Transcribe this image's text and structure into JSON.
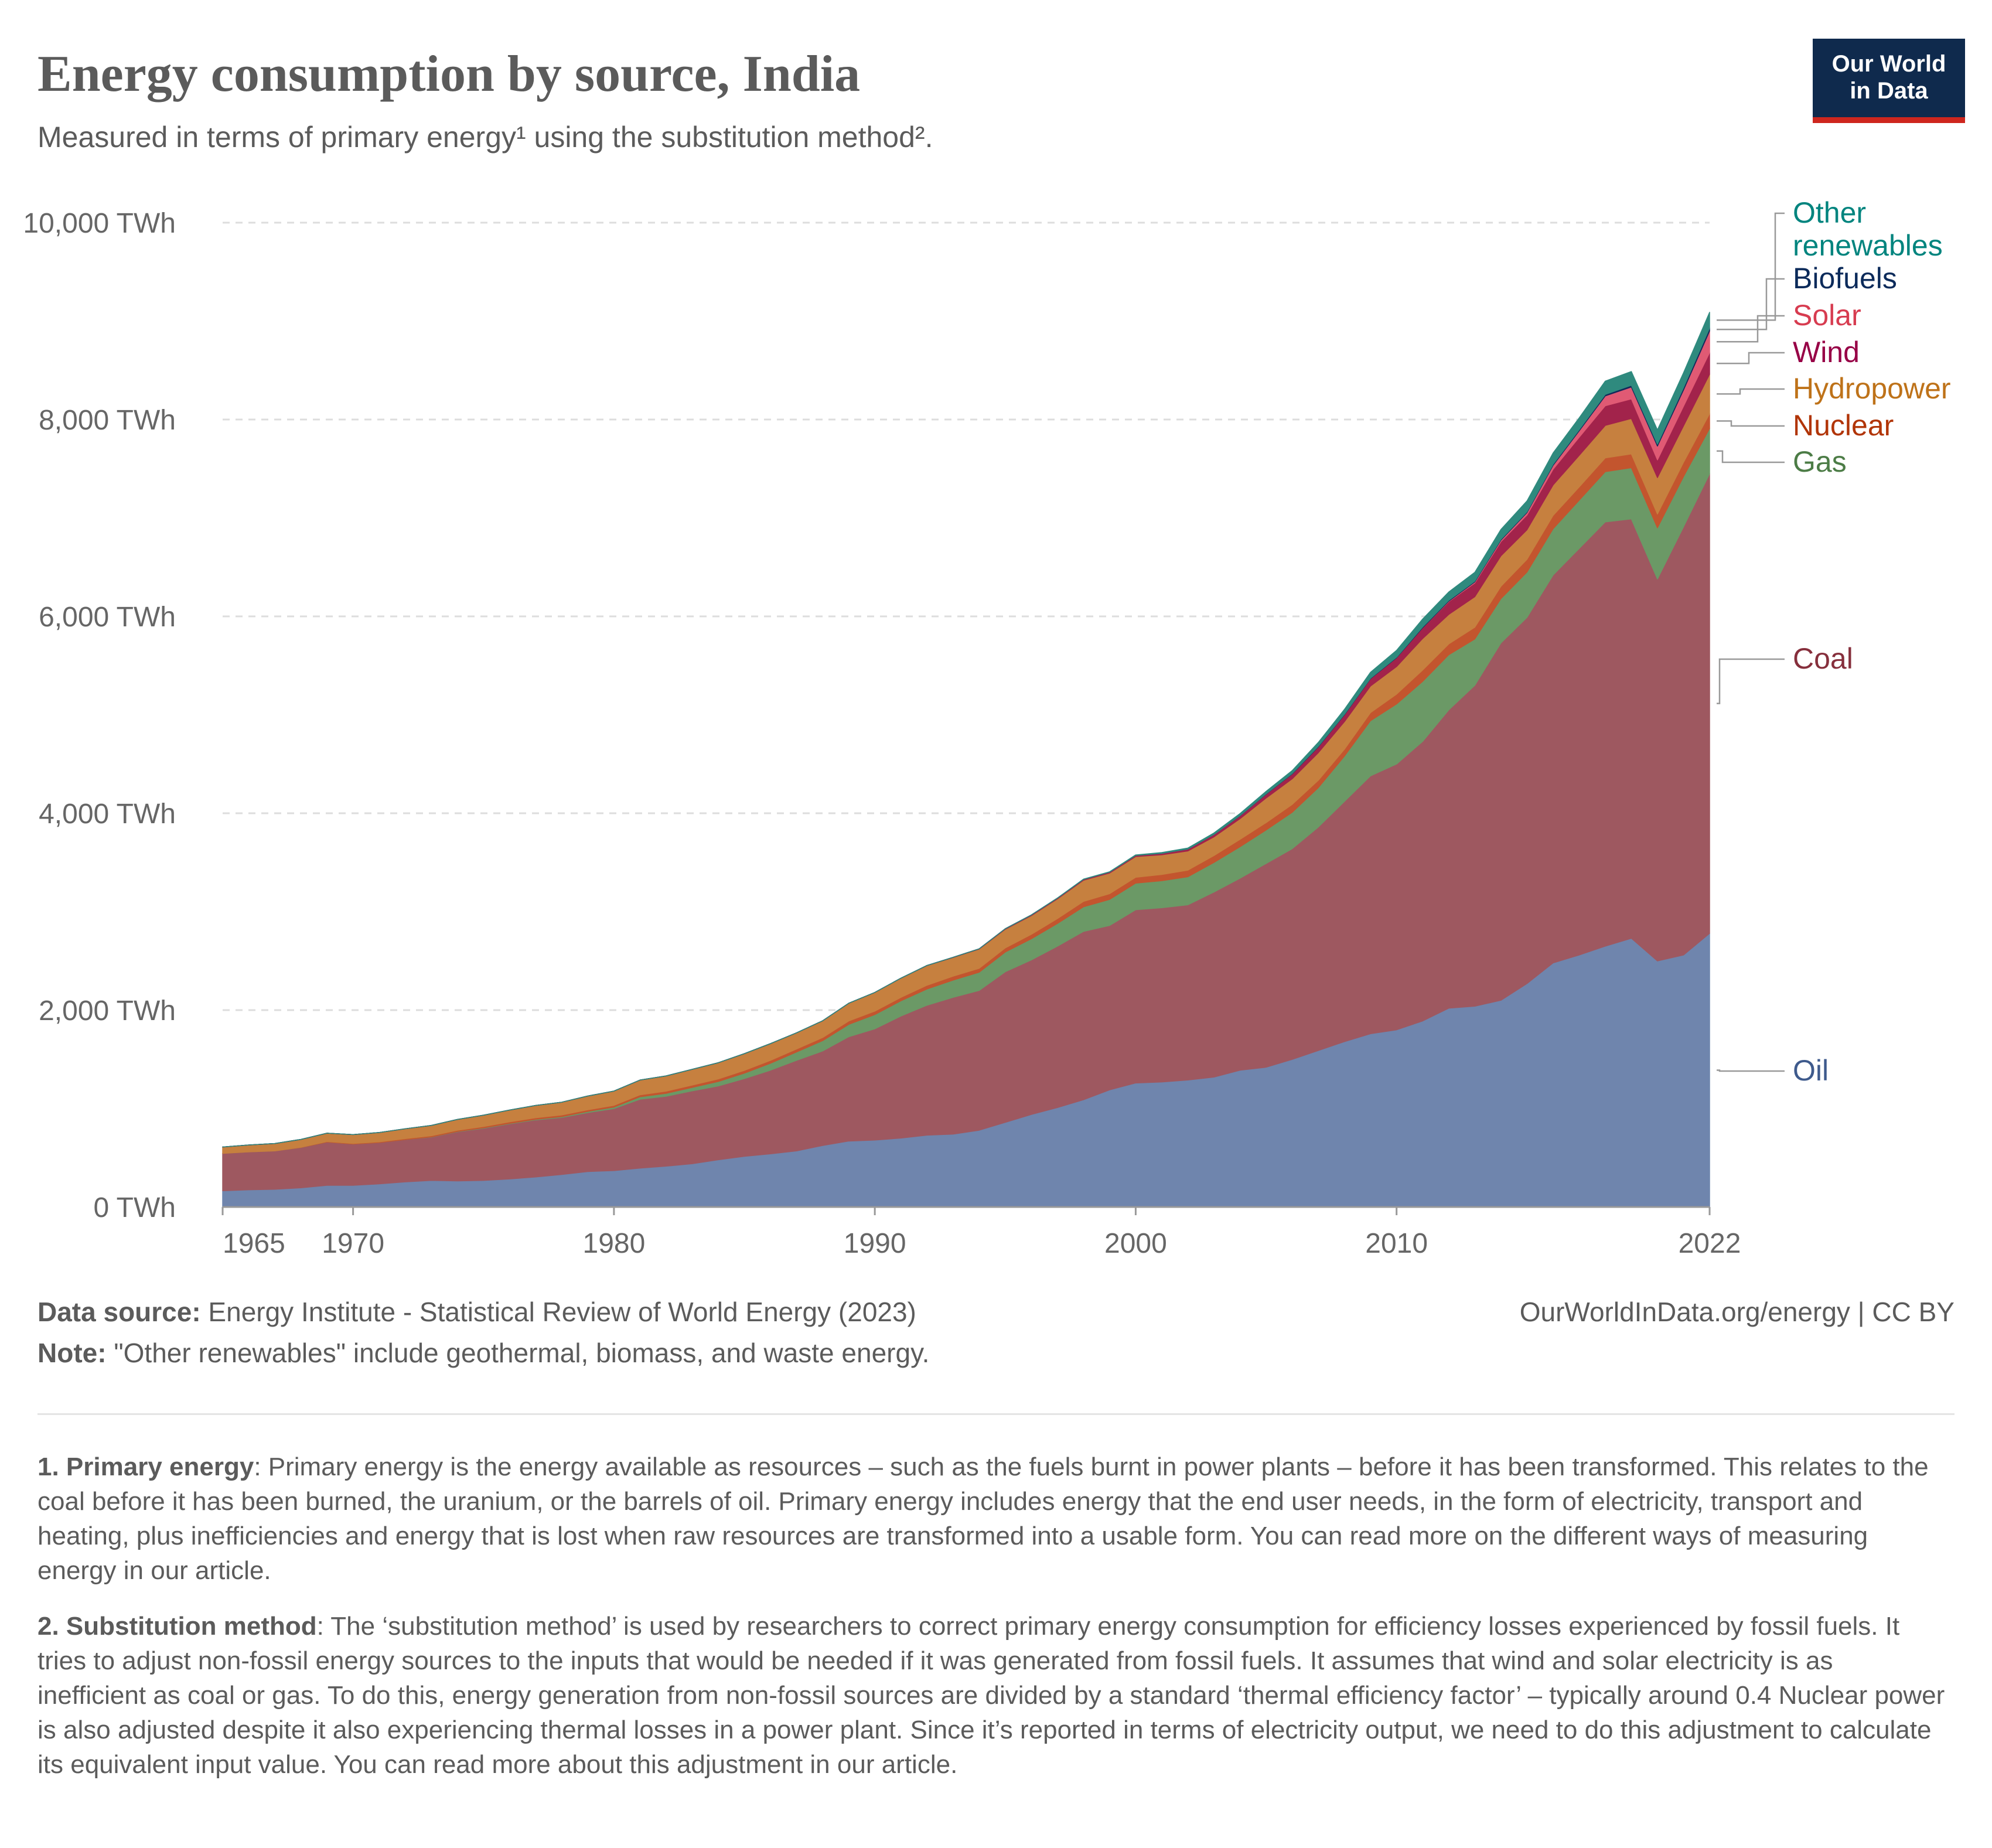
{
  "header": {
    "title": "Energy consumption by source, India",
    "subtitle": "Measured in terms of primary energy¹ using the substitution method².",
    "logo_line1": "Our World",
    "logo_line2": "in Data"
  },
  "footer": {
    "source_label": "Data source:",
    "source_text": " Energy Institute - Statistical Review of World Energy (2023)",
    "note_label": "Note:",
    "note_text": " \"Other renewables\" include geothermal, biomass, and waste energy.",
    "license": "OurWorldInData.org/energy | CC BY",
    "footnote1_label": "1. Primary energy",
    "footnote1_text": ": Primary energy is the energy available as resources – such as the fuels burnt in power plants – before it has been transformed. This relates to the coal before it has been burned, the uranium, or the barrels of oil. Primary energy includes energy that the end user needs, in the form of electricity, transport and heating, plus inefficiencies and energy that is lost when raw resources are transformed into a usable form. You can read more on the different ways of measuring energy in our article.",
    "footnote2_label": "2. Substitution method",
    "footnote2_text": ": The ‘substitution method’ is used by researchers to correct primary energy consumption for efficiency losses experienced by fossil fuels. It tries to adjust non-fossil energy sources to the inputs that would be needed if it was generated from fossil fuels. It assumes that wind and solar electricity is as inefficient as coal or gas. To do this, energy generation from non-fossil sources are divided by a standard ‘thermal efficiency factor’ – typically around 0.4 Nuclear power is also adjusted despite it also experiencing thermal losses in a power plant. Since it’s reported in terms of electricity output, we need to do this adjustment to calculate its equivalent input value. You can read more about this adjustment in our article."
  },
  "chart_data": {
    "type": "area",
    "stacked": true,
    "x": [
      1965,
      1966,
      1967,
      1968,
      1969,
      1970,
      1971,
      1972,
      1973,
      1974,
      1975,
      1976,
      1977,
      1978,
      1979,
      1980,
      1981,
      1982,
      1983,
      1984,
      1985,
      1986,
      1987,
      1988,
      1989,
      1990,
      1991,
      1992,
      1993,
      1994,
      1995,
      1996,
      1997,
      1998,
      1999,
      2000,
      2001,
      2002,
      2003,
      2004,
      2005,
      2006,
      2007,
      2008,
      2009,
      2010,
      2011,
      2012,
      2013,
      2014,
      2015,
      2016,
      2017,
      2018,
      2019,
      2020,
      2021,
      2022
    ],
    "x_ticks": [
      "1965",
      "1970",
      "1980",
      "1990",
      "2000",
      "2010",
      "2022"
    ],
    "x_tick_values": [
      1965,
      1970,
      1980,
      1990,
      2000,
      2010,
      2022
    ],
    "y_ticks": [
      "0 TWh",
      "2,000 TWh",
      "4,000 TWh",
      "6,000 TWh",
      "8,000 TWh",
      "10,000 TWh"
    ],
    "y_tick_values": [
      0,
      2000,
      4000,
      6000,
      8000,
      10000
    ],
    "ylim": [
      0,
      10000
    ],
    "xlim": [
      1965,
      2022
    ],
    "grid": true,
    "legend_placement": "right, labels at series ends",
    "series": [
      {
        "name": "Oil",
        "color": "#6f85ad",
        "label_color": "#3e5a8c",
        "values": [
          165,
          175,
          180,
          195,
          220,
          220,
          235,
          255,
          270,
          265,
          270,
          285,
          305,
          330,
          360,
          370,
          395,
          415,
          440,
          480,
          515,
          540,
          570,
          625,
          670,
          680,
          700,
          730,
          740,
          780,
          860,
          940,
          1010,
          1090,
          1190,
          1260,
          1270,
          1290,
          1320,
          1390,
          1420,
          1500,
          1590,
          1680,
          1760,
          1800,
          1890,
          2020,
          2040,
          2100,
          2270,
          2480,
          2560,
          2650,
          2730,
          2500,
          2560,
          2780
        ]
      },
      {
        "name": "Coal",
        "color": "#9e5860",
        "label_color": "#862f3c",
        "values": [
          380,
          385,
          390,
          410,
          440,
          420,
          420,
          430,
          440,
          500,
          530,
          560,
          580,
          580,
          600,
          630,
          700,
          710,
          740,
          750,
          790,
          850,
          920,
          960,
          1060,
          1130,
          1240,
          1320,
          1390,
          1420,
          1530,
          1570,
          1640,
          1710,
          1670,
          1760,
          1770,
          1780,
          1880,
          1950,
          2070,
          2140,
          2270,
          2440,
          2620,
          2700,
          2840,
          3030,
          3260,
          3630,
          3720,
          3940,
          4130,
          4310,
          4260,
          3880,
          4350,
          4670
        ]
      },
      {
        "name": "Gas",
        "color": "#6b9966",
        "label_color": "#4c7c46",
        "values": [
          0,
          0,
          0,
          0,
          0,
          0,
          0,
          0,
          2,
          3,
          4,
          5,
          6,
          8,
          12,
          15,
          25,
          30,
          35,
          45,
          55,
          70,
          85,
          105,
          125,
          145,
          155,
          165,
          175,
          185,
          200,
          215,
          230,
          250,
          265,
          270,
          275,
          285,
          300,
          320,
          340,
          370,
          400,
          460,
          560,
          610,
          610,
          560,
          470,
          450,
          460,
          470,
          490,
          510,
          520,
          520,
          510,
          460
        ]
      },
      {
        "name": "Nuclear",
        "color": "#c3552e",
        "label_color": "#b13507",
        "values": [
          0,
          0,
          0,
          2,
          5,
          6,
          7,
          10,
          12,
          12,
          14,
          15,
          16,
          17,
          16,
          18,
          20,
          22,
          24,
          26,
          28,
          30,
          30,
          32,
          35,
          35,
          35,
          38,
          40,
          40,
          42,
          45,
          50,
          55,
          58,
          60,
          63,
          67,
          70,
          75,
          75,
          80,
          75,
          70,
          82,
          100,
          115,
          110,
          120,
          125,
          130,
          135,
          135,
          140,
          140,
          140,
          145,
          150
        ]
      },
      {
        "name": "Hydropower",
        "color": "#c6803f",
        "label_color": "#be7219",
        "values": [
          65,
          70,
          75,
          80,
          85,
          90,
          95,
          100,
          105,
          110,
          115,
          120,
          125,
          130,
          140,
          145,
          150,
          155,
          160,
          165,
          170,
          170,
          165,
          170,
          180,
          190,
          195,
          200,
          190,
          195,
          190,
          190,
          200,
          215,
          210,
          210,
          200,
          195,
          190,
          210,
          250,
          260,
          280,
          280,
          270,
          280,
          320,
          300,
          310,
          310,
          300,
          310,
          320,
          330,
          360,
          370,
          370,
          400
        ]
      },
      {
        "name": "Wind",
        "color": "#a2234b",
        "label_color": "#970046",
        "values": [
          0,
          0,
          0,
          0,
          0,
          0,
          0,
          0,
          0,
          0,
          0,
          0,
          0,
          0,
          0,
          0,
          0,
          0,
          0,
          0,
          0,
          0,
          0,
          0,
          0,
          0,
          0,
          1,
          2,
          3,
          5,
          7,
          8,
          9,
          10,
          12,
          15,
          20,
          25,
          30,
          40,
          50,
          60,
          70,
          75,
          90,
          110,
          130,
          140,
          145,
          150,
          160,
          185,
          200,
          200,
          180,
          200,
          220
        ]
      },
      {
        "name": "Solar",
        "color": "#e05a74",
        "label_color": "#d73c50",
        "values": [
          0,
          0,
          0,
          0,
          0,
          0,
          0,
          0,
          0,
          0,
          0,
          0,
          0,
          0,
          0,
          0,
          0,
          0,
          0,
          0,
          0,
          0,
          0,
          0,
          0,
          0,
          0,
          0,
          0,
          0,
          0,
          0,
          0,
          0,
          0,
          0,
          0,
          0,
          0,
          0,
          0,
          0,
          0,
          0,
          0,
          0,
          0,
          5,
          10,
          15,
          25,
          40,
          65,
          100,
          120,
          140,
          165,
          220
        ]
      },
      {
        "name": "Biofuels",
        "color": "#13295b",
        "label_color": "#0b2a5a",
        "values": [
          0,
          0,
          0,
          0,
          0,
          0,
          0,
          0,
          0,
          0,
          0,
          0,
          0,
          0,
          0,
          0,
          0,
          0,
          0,
          0,
          0,
          0,
          0,
          0,
          0,
          0,
          0,
          0,
          0,
          0,
          0,
          0,
          0,
          0,
          0,
          0,
          0,
          0,
          0,
          2,
          3,
          4,
          5,
          5,
          5,
          5,
          8,
          8,
          8,
          8,
          8,
          10,
          12,
          15,
          18,
          20,
          25,
          30
        ]
      },
      {
        "name": "Other renewables",
        "color": "#2f8a7e",
        "label_color": "#00847e",
        "values": [
          0,
          0,
          0,
          0,
          0,
          0,
          0,
          0,
          0,
          0,
          0,
          0,
          0,
          0,
          0,
          0,
          0,
          0,
          0,
          0,
          0,
          0,
          0,
          0,
          0,
          0,
          0,
          0,
          0,
          0,
          0,
          0,
          1,
          2,
          3,
          5,
          8,
          10,
          15,
          20,
          25,
          30,
          40,
          50,
          60,
          70,
          80,
          85,
          90,
          100,
          110,
          115,
          120,
          135,
          140,
          145,
          150,
          160
        ]
      }
    ]
  }
}
